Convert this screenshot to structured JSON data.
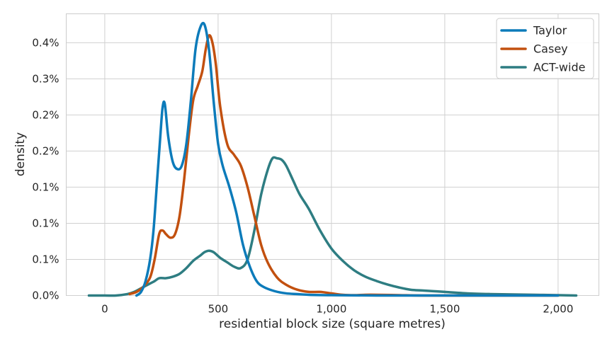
{
  "chart_data": {
    "type": "line",
    "title": "",
    "xlabel": "residential block size (square metres)",
    "ylabel": "density",
    "xlim": [
      -170,
      2180
    ],
    "ylim": [
      0,
      0.0039
    ],
    "grid": true,
    "legend_position": "top-right",
    "x_ticks": [
      {
        "value": 0,
        "label": "0"
      },
      {
        "value": 500,
        "label": "500"
      },
      {
        "value": 1000,
        "label": "1,000"
      },
      {
        "value": 1500,
        "label": "1,500"
      },
      {
        "value": 2000,
        "label": "2,000"
      }
    ],
    "y_ticks": [
      {
        "value": 0.0,
        "label": "0.0%"
      },
      {
        "value": 0.0005,
        "label": "0.1%"
      },
      {
        "value": 0.001,
        "label": "0.1%"
      },
      {
        "value": 0.0015,
        "label": "0.1%"
      },
      {
        "value": 0.002,
        "label": "0.2%"
      },
      {
        "value": 0.0025,
        "label": "0.2%"
      },
      {
        "value": 0.003,
        "label": "0.3%"
      },
      {
        "value": 0.0035,
        "label": "0.4%"
      }
    ],
    "series": [
      {
        "name": "Taylor",
        "color": "#0c7bba",
        "points": [
          [
            140,
            0.0
          ],
          [
            160,
            5e-05
          ],
          [
            180,
            0.0002
          ],
          [
            200,
            0.0005
          ],
          [
            215,
            0.0009
          ],
          [
            230,
            0.00155
          ],
          [
            245,
            0.0022
          ],
          [
            255,
            0.0026
          ],
          [
            265,
            0.00265
          ],
          [
            280,
            0.0022
          ],
          [
            300,
            0.00185
          ],
          [
            320,
            0.00175
          ],
          [
            340,
            0.0018
          ],
          [
            360,
            0.0021
          ],
          [
            380,
            0.0027
          ],
          [
            400,
            0.0034
          ],
          [
            420,
            0.0037
          ],
          [
            440,
            0.00375
          ],
          [
            460,
            0.0034
          ],
          [
            480,
            0.0027
          ],
          [
            500,
            0.0021
          ],
          [
            520,
            0.0018
          ],
          [
            550,
            0.0015
          ],
          [
            580,
            0.00115
          ],
          [
            610,
            0.0007
          ],
          [
            640,
            0.0004
          ],
          [
            670,
            0.0002
          ],
          [
            700,
            0.00012
          ],
          [
            750,
            6e-05
          ],
          [
            800,
            3e-05
          ],
          [
            850,
            2e-05
          ],
          [
            900,
            1e-05
          ],
          [
            1000,
            5e-06
          ],
          [
            1200,
            0.0
          ],
          [
            1500,
            0.0
          ],
          [
            1800,
            0.0
          ],
          [
            2000,
            0.0
          ]
        ]
      },
      {
        "name": "Casey",
        "color": "#c2500f",
        "points": [
          [
            110,
            2e-05
          ],
          [
            140,
            5e-05
          ],
          [
            170,
            0.00012
          ],
          [
            200,
            0.00025
          ],
          [
            220,
            0.0005
          ],
          [
            240,
            0.00085
          ],
          [
            255,
            0.0009
          ],
          [
            270,
            0.00085
          ],
          [
            290,
            0.0008
          ],
          [
            310,
            0.00085
          ],
          [
            330,
            0.0011
          ],
          [
            350,
            0.0016
          ],
          [
            370,
            0.0022
          ],
          [
            390,
            0.0027
          ],
          [
            410,
            0.0029
          ],
          [
            430,
            0.0031
          ],
          [
            445,
            0.0034
          ],
          [
            460,
            0.0036
          ],
          [
            475,
            0.0035
          ],
          [
            490,
            0.0032
          ],
          [
            510,
            0.0026
          ],
          [
            540,
            0.0021
          ],
          [
            570,
            0.00195
          ],
          [
            600,
            0.0018
          ],
          [
            630,
            0.0015
          ],
          [
            660,
            0.0011
          ],
          [
            690,
            0.0007
          ],
          [
            720,
            0.00045
          ],
          [
            760,
            0.00025
          ],
          [
            800,
            0.00015
          ],
          [
            850,
            8e-05
          ],
          [
            900,
            5e-05
          ],
          [
            950,
            5e-05
          ],
          [
            1000,
            3e-05
          ],
          [
            1050,
            1e-05
          ],
          [
            1100,
            5e-06
          ],
          [
            1150,
            1e-05
          ],
          [
            1200,
            1e-05
          ],
          [
            1300,
            5e-06
          ],
          [
            1400,
            0.0
          ],
          [
            1600,
            0.0
          ],
          [
            1800,
            0.0
          ],
          [
            2000,
            0.0
          ]
        ]
      },
      {
        "name": "ACT-wide",
        "color": "#2e7d82",
        "points": [
          [
            -70,
            0.0
          ],
          [
            0,
            0.0
          ],
          [
            50,
            0.0
          ],
          [
            100,
            2e-05
          ],
          [
            130,
            5e-05
          ],
          [
            160,
            0.0001
          ],
          [
            190,
            0.00015
          ],
          [
            220,
            0.0002
          ],
          [
            240,
            0.00024
          ],
          [
            270,
            0.00024
          ],
          [
            300,
            0.00026
          ],
          [
            330,
            0.0003
          ],
          [
            360,
            0.00038
          ],
          [
            390,
            0.00048
          ],
          [
            420,
            0.00055
          ],
          [
            440,
            0.0006
          ],
          [
            460,
            0.00062
          ],
          [
            480,
            0.0006
          ],
          [
            510,
            0.00052
          ],
          [
            540,
            0.00046
          ],
          [
            570,
            0.0004
          ],
          [
            600,
            0.00038
          ],
          [
            630,
            0.0005
          ],
          [
            660,
            0.0009
          ],
          [
            690,
            0.0014
          ],
          [
            720,
            0.00175
          ],
          [
            740,
            0.0019
          ],
          [
            760,
            0.0019
          ],
          [
            780,
            0.00188
          ],
          [
            800,
            0.0018
          ],
          [
            830,
            0.0016
          ],
          [
            860,
            0.0014
          ],
          [
            900,
            0.0012
          ],
          [
            950,
            0.0009
          ],
          [
            1000,
            0.00065
          ],
          [
            1050,
            0.00048
          ],
          [
            1100,
            0.00035
          ],
          [
            1150,
            0.00026
          ],
          [
            1200,
            0.0002
          ],
          [
            1250,
            0.00015
          ],
          [
            1300,
            0.00011
          ],
          [
            1350,
            8e-05
          ],
          [
            1400,
            7e-05
          ],
          [
            1450,
            6e-05
          ],
          [
            1500,
            5e-05
          ],
          [
            1600,
            3e-05
          ],
          [
            1700,
            2e-05
          ],
          [
            1800,
            1.5e-05
          ],
          [
            1900,
            1e-05
          ],
          [
            2000,
            5e-06
          ],
          [
            2080,
            0.0
          ]
        ]
      }
    ]
  }
}
